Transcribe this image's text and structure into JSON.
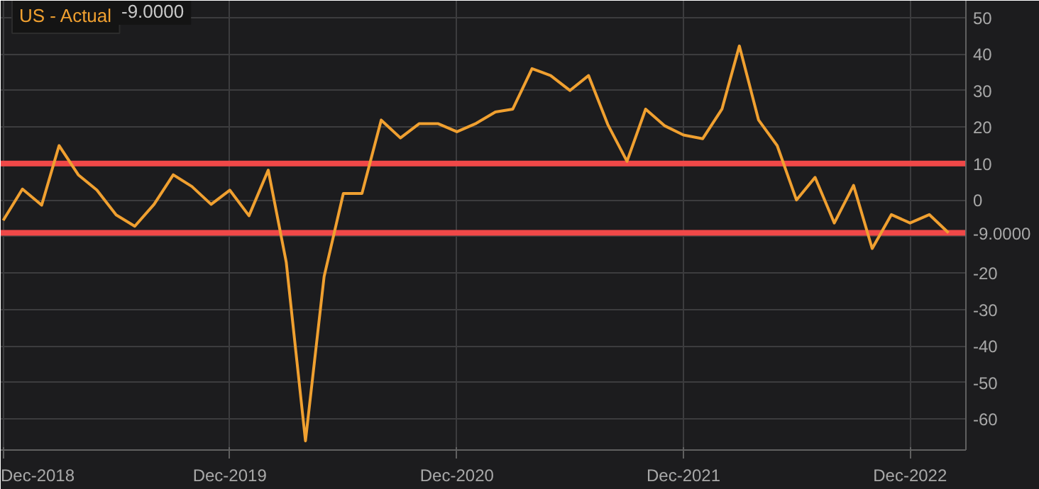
{
  "chart_data": {
    "type": "line",
    "x": [
      "2018-12",
      "2019-01",
      "2019-02",
      "2019-03",
      "2019-04",
      "2019-05",
      "2019-06",
      "2019-07",
      "2019-08",
      "2019-09",
      "2019-10",
      "2019-11",
      "2019-12",
      "2020-01",
      "2020-02",
      "2020-03",
      "2020-04",
      "2020-05",
      "2020-06",
      "2020-07",
      "2020-08",
      "2020-09",
      "2020-10",
      "2020-11",
      "2020-12",
      "2021-01",
      "2021-02",
      "2021-03",
      "2021-04",
      "2021-05",
      "2021-06",
      "2021-07",
      "2021-08",
      "2021-09",
      "2021-10",
      "2021-11",
      "2021-12",
      "2022-01",
      "2022-02",
      "2022-03",
      "2022-04",
      "2022-05",
      "2022-06",
      "2022-07",
      "2022-08",
      "2022-09",
      "2022-10",
      "2022-11",
      "2022-12",
      "2023-01",
      "2023-02"
    ],
    "series": [
      {
        "name": "US - Actual",
        "color": "#f0a030",
        "values": [
          -5.6,
          3.0,
          -1.4,
          14.9,
          6.9,
          2.7,
          -4.1,
          -7.2,
          -1.2,
          6.9,
          3.7,
          -1.2,
          2.7,
          -4.3,
          8.2,
          -17,
          -66,
          -21,
          1.8,
          1.8,
          21.9,
          17,
          20.9,
          20.9,
          18.7,
          21,
          24.1,
          24.9,
          36,
          34.1,
          30,
          34.1,
          20.7,
          10.6,
          24.9,
          20.3,
          17.8,
          16.8,
          24.9,
          42.2,
          21.9,
          14.9,
          0,
          6.2,
          -6.3,
          4,
          -13.3,
          -4,
          -6.3,
          -4,
          -9
        ]
      }
    ],
    "xlim": [
      "2018-11-27",
      "2023-03-01"
    ],
    "xticks": [
      {
        "value": "2018-12",
        "label": "Dec-2018"
      },
      {
        "value": "2019-12",
        "label": "Dec-2019"
      },
      {
        "value": "2020-12",
        "label": "Dec-2020"
      },
      {
        "value": "2021-12",
        "label": "Dec-2021"
      },
      {
        "value": "2022-12",
        "label": "Dec-2022"
      }
    ],
    "ylim": [
      -68.5,
      54.6
    ],
    "yticks": [
      -60,
      -50,
      -40,
      -30,
      -20,
      {
        "value": -10,
        "label": null
      },
      0,
      10,
      20,
      30,
      40,
      50
    ],
    "ref_lines": [
      {
        "axis": "y",
        "value": 10,
        "color": "#f04848"
      },
      {
        "axis": "y",
        "value": -9,
        "label": "-9.0000",
        "color": "#f04848"
      }
    ],
    "annotations": [
      "-9.0000"
    ],
    "grid": true,
    "legend": "top left"
  }
}
